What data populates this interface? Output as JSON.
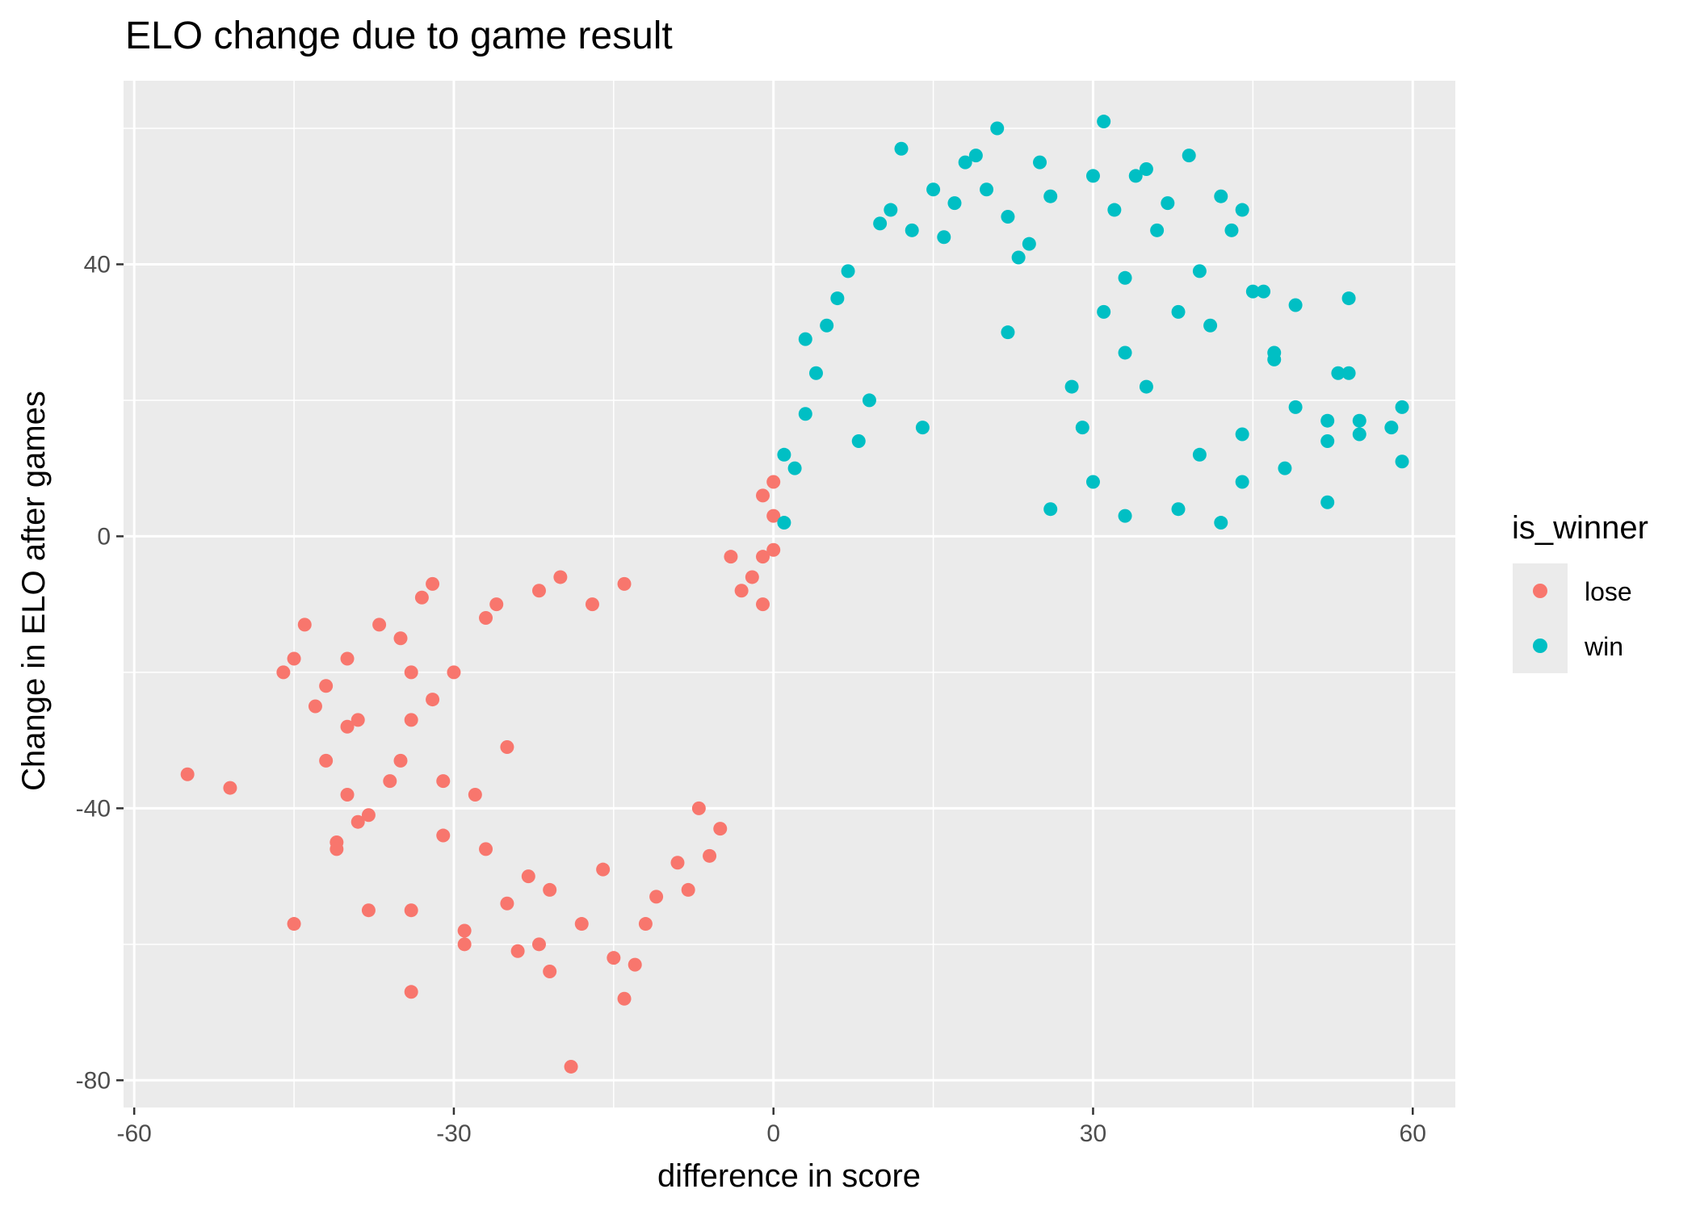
{
  "chart_data": {
    "type": "scatter",
    "title": "ELO change due to game result",
    "xlabel": "difference in score",
    "ylabel": "Change in ELO after games",
    "xlim": [
      -61,
      64
    ],
    "ylim": [
      -84,
      67
    ],
    "x_ticks": [
      -60,
      -30,
      0,
      30,
      60
    ],
    "x_tick_labels": [
      "-60",
      "-30",
      "0",
      "30",
      "60"
    ],
    "y_ticks": [
      -80,
      -40,
      0,
      40
    ],
    "y_tick_labels": [
      "-80",
      "-40",
      "0",
      "40"
    ],
    "grid": true,
    "panel_background": "#ebebeb",
    "legend": {
      "title": "is_winner",
      "position": "right",
      "entries": [
        {
          "label": "lose",
          "color": "#F8766D"
        },
        {
          "label": "win",
          "color": "#00BFC4"
        }
      ]
    },
    "series": [
      {
        "name": "lose",
        "color": "#F8766D",
        "points": [
          [
            -55,
            -35
          ],
          [
            -51,
            -37
          ],
          [
            -46,
            -20
          ],
          [
            -45,
            -57
          ],
          [
            -45,
            -18
          ],
          [
            -44,
            -13
          ],
          [
            -43,
            -25
          ],
          [
            -42,
            -22
          ],
          [
            -42,
            -33
          ],
          [
            -41,
            -45
          ],
          [
            -41,
            -46
          ],
          [
            -40,
            -38
          ],
          [
            -40,
            -28
          ],
          [
            -40,
            -18
          ],
          [
            -39,
            -42
          ],
          [
            -39,
            -27
          ],
          [
            -38,
            -55
          ],
          [
            -38,
            -41
          ],
          [
            -37,
            -13
          ],
          [
            -36,
            -36
          ],
          [
            -35,
            -15
          ],
          [
            -35,
            -33
          ],
          [
            -34,
            -67
          ],
          [
            -34,
            -55
          ],
          [
            -34,
            -20
          ],
          [
            -34,
            -27
          ],
          [
            -33,
            -9
          ],
          [
            -32,
            -7
          ],
          [
            -32,
            -24
          ],
          [
            -31,
            -36
          ],
          [
            -31,
            -44
          ],
          [
            -30,
            -20
          ],
          [
            -29,
            -58
          ],
          [
            -29,
            -60
          ],
          [
            -28,
            -38
          ],
          [
            -27,
            -46
          ],
          [
            -27,
            -12
          ],
          [
            -26,
            -10
          ],
          [
            -25,
            -54
          ],
          [
            -25,
            -31
          ],
          [
            -24,
            -61
          ],
          [
            -23,
            -50
          ],
          [
            -22,
            -8
          ],
          [
            -22,
            -60
          ],
          [
            -21,
            -64
          ],
          [
            -21,
            -52
          ],
          [
            -20,
            -6
          ],
          [
            -19,
            -78
          ],
          [
            -18,
            -57
          ],
          [
            -17,
            -10
          ],
          [
            -16,
            -49
          ],
          [
            -15,
            -62
          ],
          [
            -14,
            -7
          ],
          [
            -14,
            -68
          ],
          [
            -13,
            -63
          ],
          [
            -12,
            -57
          ],
          [
            -11,
            -53
          ],
          [
            -9,
            -48
          ],
          [
            -8,
            -52
          ],
          [
            -7,
            -40
          ],
          [
            -6,
            -47
          ],
          [
            -5,
            -43
          ],
          [
            -4,
            -3
          ],
          [
            -3,
            -8
          ],
          [
            -2,
            -6
          ],
          [
            -1,
            -10
          ],
          [
            -1,
            -3
          ],
          [
            0,
            8
          ],
          [
            0,
            -2
          ],
          [
            0,
            3
          ],
          [
            -1,
            6
          ]
        ]
      },
      {
        "name": "win",
        "color": "#00BFC4",
        "points": [
          [
            1,
            12
          ],
          [
            1,
            2
          ],
          [
            2,
            10
          ],
          [
            3,
            18
          ],
          [
            3,
            29
          ],
          [
            4,
            24
          ],
          [
            5,
            31
          ],
          [
            6,
            35
          ],
          [
            7,
            39
          ],
          [
            8,
            14
          ],
          [
            9,
            20
          ],
          [
            10,
            46
          ],
          [
            11,
            48
          ],
          [
            12,
            57
          ],
          [
            13,
            45
          ],
          [
            14,
            16
          ],
          [
            15,
            51
          ],
          [
            16,
            44
          ],
          [
            17,
            49
          ],
          [
            18,
            55
          ],
          [
            19,
            56
          ],
          [
            20,
            51
          ],
          [
            21,
            60
          ],
          [
            22,
            47
          ],
          [
            23,
            41
          ],
          [
            24,
            43
          ],
          [
            25,
            55
          ],
          [
            26,
            50
          ],
          [
            28,
            22
          ],
          [
            29,
            16
          ],
          [
            30,
            53
          ],
          [
            31,
            61
          ],
          [
            32,
            48
          ],
          [
            33,
            38
          ],
          [
            34,
            53
          ],
          [
            35,
            54
          ],
          [
            36,
            45
          ],
          [
            37,
            49
          ],
          [
            38,
            33
          ],
          [
            39,
            56
          ],
          [
            40,
            39
          ],
          [
            41,
            31
          ],
          [
            42,
            50
          ],
          [
            43,
            45
          ],
          [
            44,
            48
          ],
          [
            45,
            36
          ],
          [
            46,
            36
          ],
          [
            47,
            27
          ],
          [
            48,
            10
          ],
          [
            49,
            34
          ],
          [
            49,
            19
          ],
          [
            52,
            17
          ],
          [
            52,
            14
          ],
          [
            52,
            5
          ],
          [
            53,
            24
          ],
          [
            54,
            24
          ],
          [
            54,
            35
          ],
          [
            55,
            17
          ],
          [
            55,
            15
          ],
          [
            58,
            16
          ],
          [
            59,
            19
          ],
          [
            59,
            11
          ],
          [
            30,
            8
          ],
          [
            33,
            3
          ],
          [
            38,
            4
          ],
          [
            42,
            2
          ],
          [
            44,
            8
          ],
          [
            35,
            22
          ],
          [
            40,
            12
          ],
          [
            44,
            15
          ],
          [
            47,
            26
          ],
          [
            33,
            27
          ],
          [
            31,
            33
          ],
          [
            26,
            4
          ],
          [
            22,
            30
          ]
        ]
      }
    ]
  }
}
